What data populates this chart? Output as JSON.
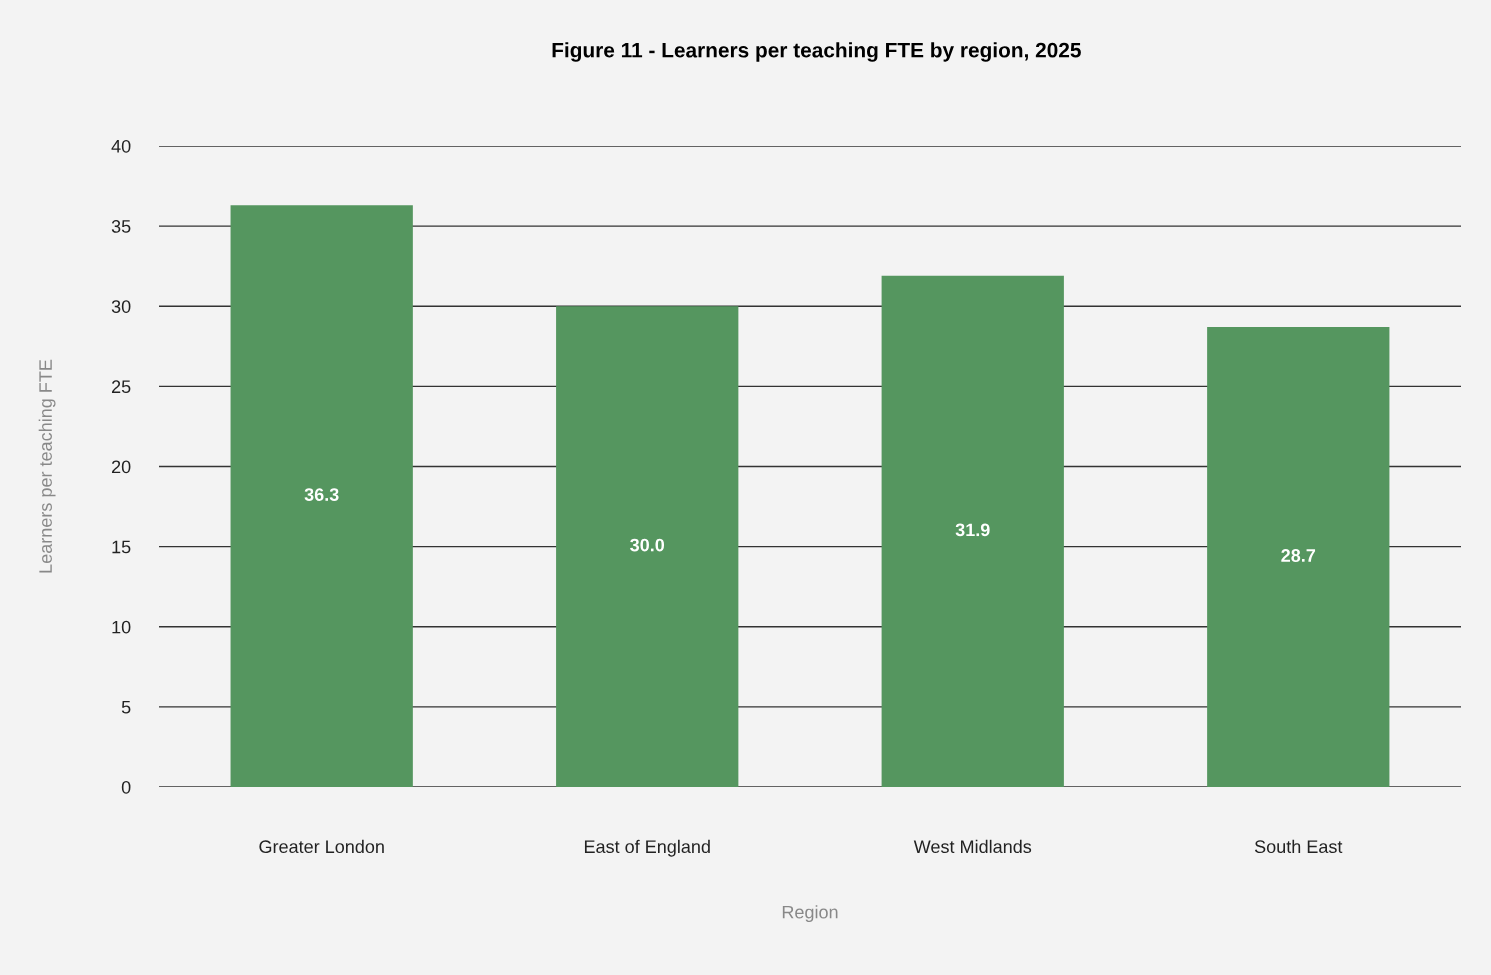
{
  "chart_data": {
    "type": "bar",
    "title": "Figure 11 - Learners per teaching FTE by region, 2025",
    "xlabel": "Region",
    "ylabel": "Learners per teaching FTE",
    "categories": [
      "Greater London",
      "East of England",
      "West Midlands",
      "South East"
    ],
    "values": [
      36.3,
      30.0,
      31.9,
      28.7
    ],
    "color": "#55965f",
    "ylim": [
      0,
      40
    ],
    "yticks": [
      0,
      5,
      10,
      15,
      20,
      25,
      30,
      35,
      40
    ],
    "grid": "y",
    "legend": false,
    "value_labels": [
      "36.3",
      "30.0",
      "31.9",
      "28.7"
    ]
  }
}
